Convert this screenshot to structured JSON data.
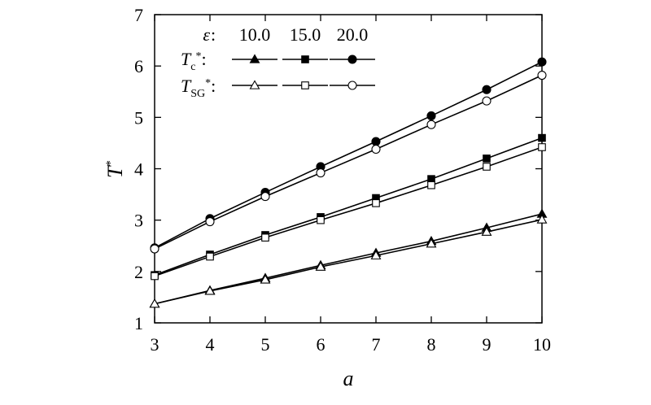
{
  "chart_data": {
    "type": "line",
    "xlabel": "a",
    "ylabel": "T",
    "ylabel_sup": "*",
    "xlim": [
      3,
      10
    ],
    "ylim": [
      1,
      7
    ],
    "xticks": [
      "3",
      "4",
      "5",
      "6",
      "7",
      "8",
      "9",
      "10"
    ],
    "yticks": [
      "1",
      "2",
      "3",
      "4",
      "5",
      "6",
      "7"
    ],
    "grid": false,
    "legend": {
      "position": "top-left",
      "header_symbol": "ε",
      "header_suffix": ":",
      "columns": [
        "10.0",
        "15.0",
        "20.0"
      ],
      "row1_symbol": "T",
      "row1_sub": "c",
      "row1_sup": "*",
      "row1_suffix": ":",
      "row2_symbol": "T",
      "row2_sub": "SG",
      "row2_sup": "*",
      "row2_suffix": ":"
    },
    "x": [
      3,
      4,
      5,
      6,
      7,
      8,
      9,
      10
    ],
    "series": [
      {
        "group": "Tc",
        "epsilon": "10.0",
        "marker": "triangle",
        "filled": true,
        "values": [
          1.37,
          1.63,
          1.87,
          2.12,
          2.36,
          2.59,
          2.85,
          3.12
        ]
      },
      {
        "group": "TSG",
        "epsilon": "10.0",
        "marker": "triangle",
        "filled": false,
        "values": [
          1.37,
          1.62,
          1.84,
          2.09,
          2.31,
          2.54,
          2.77,
          3.01
        ]
      },
      {
        "group": "Tc",
        "epsilon": "15.0",
        "marker": "square",
        "filled": true,
        "values": [
          1.93,
          2.33,
          2.71,
          3.06,
          3.43,
          3.8,
          4.2,
          4.6
        ]
      },
      {
        "group": "TSG",
        "epsilon": "15.0",
        "marker": "square",
        "filled": false,
        "values": [
          1.91,
          2.29,
          2.66,
          3.0,
          3.33,
          3.68,
          4.04,
          4.42
        ]
      },
      {
        "group": "Tc",
        "epsilon": "20.0",
        "marker": "circle",
        "filled": true,
        "values": [
          2.46,
          3.03,
          3.54,
          4.04,
          4.53,
          5.03,
          5.54,
          6.08
        ]
      },
      {
        "group": "TSG",
        "epsilon": "20.0",
        "marker": "circle",
        "filled": false,
        "values": [
          2.44,
          2.97,
          3.46,
          3.92,
          4.38,
          4.86,
          5.32,
          5.82
        ]
      }
    ]
  }
}
